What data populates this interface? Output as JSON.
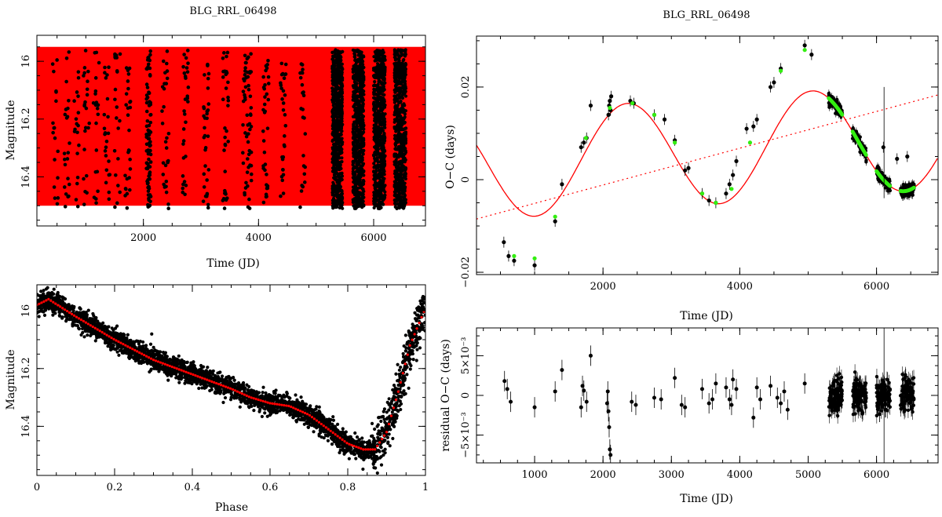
{
  "colors": {
    "data": "#000000",
    "model": "#ff0000",
    "highlight": "#33ee11",
    "axis": "#000000"
  },
  "chart_data": [
    {
      "id": "light-curve-time",
      "type": "scatter",
      "title": "BLG_RRL_06498",
      "xlabel": "Time (JD)",
      "ylabel": "Magnitude",
      "xlim": [
        150,
        6900
      ],
      "ylim": [
        16.57,
        15.91
      ],
      "y_inverted": true,
      "xticks": [
        2000,
        4000,
        6000
      ],
      "xtick_labels": [
        "2000",
        "4000",
        "6000"
      ],
      "yticks": [
        16.0,
        16.2,
        16.4
      ],
      "ytick_labels": [
        "16",
        "16.2",
        "16.4"
      ],
      "model_band": {
        "mag_range": [
          15.95,
          16.5
        ],
        "x_range": [
          150,
          6900
        ]
      },
      "observing_seasons": [
        {
          "start": 420,
          "end": 520,
          "n": 18,
          "dense": false
        },
        {
          "start": 620,
          "end": 720,
          "n": 22,
          "dense": false
        },
        {
          "start": 780,
          "end": 880,
          "n": 18,
          "dense": false
        },
        {
          "start": 960,
          "end": 1060,
          "n": 22,
          "dense": false
        },
        {
          "start": 1130,
          "end": 1230,
          "n": 20,
          "dense": false
        },
        {
          "start": 1320,
          "end": 1420,
          "n": 24,
          "dense": false
        },
        {
          "start": 1500,
          "end": 1600,
          "n": 22,
          "dense": false
        },
        {
          "start": 1680,
          "end": 1780,
          "n": 28,
          "dense": false
        },
        {
          "start": 2050,
          "end": 2130,
          "n": 90,
          "dense": false
        },
        {
          "start": 2320,
          "end": 2440,
          "n": 30,
          "dense": false
        },
        {
          "start": 2680,
          "end": 2780,
          "n": 30,
          "dense": false
        },
        {
          "start": 3040,
          "end": 3140,
          "n": 34,
          "dense": false
        },
        {
          "start": 3380,
          "end": 3480,
          "n": 34,
          "dense": false
        },
        {
          "start": 3720,
          "end": 3880,
          "n": 60,
          "dense": false
        },
        {
          "start": 4080,
          "end": 4180,
          "n": 36,
          "dense": false
        },
        {
          "start": 4380,
          "end": 4480,
          "n": 30,
          "dense": false
        },
        {
          "start": 4720,
          "end": 4820,
          "n": 26,
          "dense": false
        },
        {
          "start": 5280,
          "end": 5460,
          "n": 700,
          "dense": true
        },
        {
          "start": 5640,
          "end": 5830,
          "n": 700,
          "dense": true
        },
        {
          "start": 6000,
          "end": 6200,
          "n": 700,
          "dense": true
        },
        {
          "start": 6360,
          "end": 6560,
          "n": 700,
          "dense": true
        }
      ]
    },
    {
      "id": "light-curve-phase",
      "type": "scatter",
      "title": "",
      "xlabel": "Phase",
      "ylabel": "Magnitude",
      "xlim": [
        0,
        1
      ],
      "ylim": [
        16.57,
        15.91
      ],
      "y_inverted": true,
      "xticks": [
        0,
        0.2,
        0.4,
        0.6,
        0.8,
        1
      ],
      "xtick_labels": [
        "0",
        "0.2",
        "0.4",
        "0.6",
        "0.8",
        "1"
      ],
      "yticks": [
        16.0,
        16.2,
        16.4
      ],
      "ytick_labels": [
        "16",
        "16.2",
        "16.4"
      ],
      "mean_curve": {
        "phase": [
          0,
          0.03,
          0.1,
          0.2,
          0.3,
          0.4,
          0.5,
          0.55,
          0.6,
          0.65,
          0.7,
          0.75,
          0.8,
          0.84,
          0.87,
          0.9,
          0.93,
          0.96,
          1.0
        ],
        "mag": [
          15.98,
          15.96,
          16.02,
          16.1,
          16.17,
          16.22,
          16.27,
          16.3,
          16.32,
          16.33,
          16.36,
          16.41,
          16.46,
          16.48,
          16.48,
          16.42,
          16.28,
          16.12,
          15.99
        ]
      },
      "scatter_sigma": 0.018
    },
    {
      "id": "oc-diagram",
      "type": "scatter",
      "title": "BLG_RRL_06498",
      "xlabel": "Time (JD)",
      "ylabel": "O−C (days)",
      "xlim": [
        150,
        6900
      ],
      "ylim": [
        -0.0205,
        0.031
      ],
      "xticks": [
        2000,
        4000,
        6000
      ],
      "xtick_labels": [
        "2000",
        "4000",
        "6000"
      ],
      "yticks": [
        -0.02,
        0,
        0.02
      ],
      "ytick_labels": [
        "−0.02",
        "0",
        "0.02"
      ],
      "model": {
        "type": "sine_plus_linear",
        "amplitude": 0.0115,
        "period": 2700,
        "phase_ref": 1680,
        "offset": 0.0055,
        "slope": 1e-06,
        "slope_ref": 2900
      },
      "linear_trend": {
        "x": [
          150,
          6900
        ],
        "y": [
          -0.0085,
          0.0183
        ]
      },
      "points": [
        [
          550,
          -0.0135
        ],
        [
          620,
          -0.0165
        ],
        [
          700,
          -0.0175
        ],
        [
          1000,
          -0.0185
        ],
        [
          1300,
          -0.009
        ],
        [
          1400,
          -0.001
        ],
        [
          1680,
          0.007
        ],
        [
          1720,
          0.008
        ],
        [
          1760,
          0.009
        ],
        [
          1820,
          0.016
        ],
        [
          2080,
          0.014
        ],
        [
          2090,
          0.016
        ],
        [
          2100,
          0.017
        ],
        [
          2110,
          0.015
        ],
        [
          2120,
          0.018
        ],
        [
          2400,
          0.017
        ],
        [
          2450,
          0.0165
        ],
        [
          2750,
          0.014
        ],
        [
          2900,
          0.013
        ],
        [
          3050,
          0.0085
        ],
        [
          3200,
          0.002
        ],
        [
          3250,
          0.0025
        ],
        [
          3450,
          -0.003
        ],
        [
          3550,
          -0.0045
        ],
        [
          3650,
          -0.005
        ],
        [
          3800,
          -0.003
        ],
        [
          3850,
          -0.001
        ],
        [
          3900,
          0.001
        ],
        [
          3950,
          0.004
        ],
        [
          4100,
          0.011
        ],
        [
          4200,
          0.0115
        ],
        [
          4250,
          0.013
        ],
        [
          4450,
          0.02
        ],
        [
          4500,
          0.021
        ],
        [
          4600,
          0.024
        ],
        [
          4950,
          0.029
        ],
        [
          5050,
          0.027
        ],
        [
          6100,
          0.007
        ],
        [
          6300,
          0.0045
        ],
        [
          6450,
          0.005
        ]
      ],
      "green_points": [
        [
          700,
          -0.0165
        ],
        [
          1000,
          -0.017
        ],
        [
          1300,
          -0.008
        ],
        [
          1750,
          0.009
        ],
        [
          2100,
          0.0155
        ],
        [
          2430,
          0.0165
        ],
        [
          2750,
          0.014
        ],
        [
          3050,
          0.008
        ],
        [
          3450,
          -0.003
        ],
        [
          3650,
          -0.005
        ],
        [
          3880,
          -0.002
        ],
        [
          4150,
          0.008
        ],
        [
          4600,
          0.0235
        ],
        [
          4950,
          0.028
        ]
      ],
      "dense_segments": [
        [
          5300,
          5500
        ],
        [
          5650,
          5850
        ],
        [
          6000,
          6200
        ],
        [
          6350,
          6550
        ]
      ],
      "outlier_errorbar": {
        "x": 6110,
        "y": 0.008,
        "err": 0.012
      }
    },
    {
      "id": "oc-residuals",
      "type": "scatter",
      "title": "",
      "xlabel": "Time (JD)",
      "ylabel": "residual O−C (days)",
      "xlim": [
        150,
        6900
      ],
      "ylim": [
        -0.0085,
        0.0085
      ],
      "xticks": [
        1000,
        2000,
        3000,
        4000,
        5000,
        6000
      ],
      "xtick_labels": [
        "1000",
        "2000",
        "3000",
        "4000",
        "5000",
        "6000"
      ],
      "yticks": [
        -0.005,
        0,
        0.005
      ],
      "ytick_labels": [
        "−5×10⁻³",
        "0",
        "5×10⁻³"
      ],
      "points": [
        [
          560,
          0.0018
        ],
        [
          600,
          0.0008
        ],
        [
          650,
          -0.0008
        ],
        [
          1000,
          -0.0015
        ],
        [
          1300,
          0.0005
        ],
        [
          1400,
          0.0032
        ],
        [
          1680,
          -0.0015
        ],
        [
          1700,
          0.0012
        ],
        [
          1720,
          0.0006
        ],
        [
          1760,
          -0.0008
        ],
        [
          1820,
          0.005
        ],
        [
          2060,
          -0.001
        ],
        [
          2070,
          0.0005
        ],
        [
          2080,
          -0.002
        ],
        [
          2090,
          -0.004
        ],
        [
          2100,
          -0.0068
        ],
        [
          2110,
          -0.0075
        ],
        [
          2420,
          -0.0008
        ],
        [
          2480,
          -0.0012
        ],
        [
          2750,
          -0.0003
        ],
        [
          2850,
          -0.0005
        ],
        [
          3050,
          0.0022
        ],
        [
          3150,
          -0.0012
        ],
        [
          3200,
          -0.0015
        ],
        [
          3450,
          0.0008
        ],
        [
          3550,
          -0.001
        ],
        [
          3600,
          -0.0005
        ],
        [
          3650,
          0.0015
        ],
        [
          3800,
          0.001
        ],
        [
          3850,
          -0.0005
        ],
        [
          3880,
          -0.0012
        ],
        [
          3900,
          0.002
        ],
        [
          3950,
          0.0008
        ],
        [
          4200,
          -0.0028
        ],
        [
          4250,
          0.001
        ],
        [
          4300,
          -0.0005
        ],
        [
          4450,
          0.0012
        ],
        [
          4550,
          -0.0003
        ],
        [
          4600,
          -0.001
        ],
        [
          4650,
          0.0005
        ],
        [
          4700,
          -0.0018
        ],
        [
          4950,
          0.0015
        ]
      ],
      "dense_segments": [
        [
          5300,
          5500
        ],
        [
          5650,
          5850
        ],
        [
          6000,
          6200
        ],
        [
          6350,
          6550
        ]
      ],
      "outlier_errorbar": {
        "x": 6110,
        "y": 0.0,
        "err": 0.009
      }
    }
  ]
}
